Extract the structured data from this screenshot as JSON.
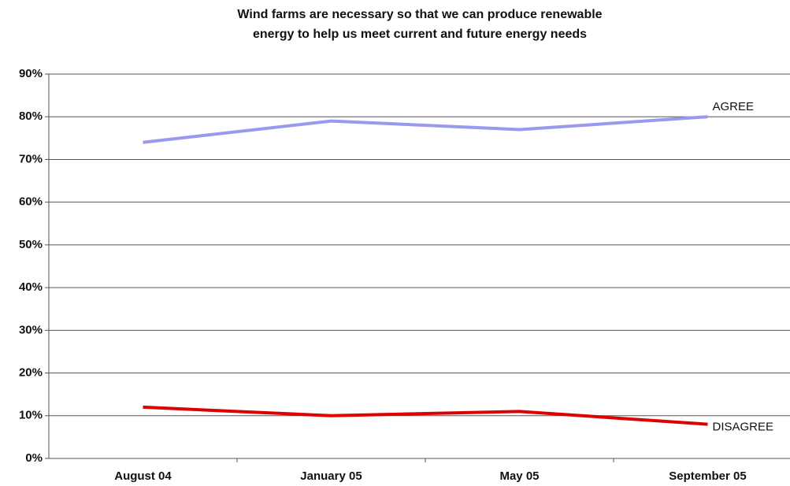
{
  "chart_data": {
    "type": "line",
    "title": [
      "Wind farms are necessary so that we can produce renewable",
      "energy to help us meet current and future energy needs"
    ],
    "categories": [
      "August 04",
      "January 05",
      "May 05",
      "September 05"
    ],
    "series": [
      {
        "name": "AGREE",
        "color": "#9999ee",
        "values": [
          74,
          79,
          77,
          80
        ]
      },
      {
        "name": "DISAGREE",
        "color": "#dd0000",
        "values": [
          12,
          10,
          11,
          8
        ]
      }
    ],
    "ylim": [
      0,
      90
    ],
    "yticks": [
      {
        "value": 0,
        "label": "0%"
      },
      {
        "value": 10,
        "label": "10%"
      },
      {
        "value": 20,
        "label": "20%"
      },
      {
        "value": 30,
        "label": "30%"
      },
      {
        "value": 40,
        "label": "40%"
      },
      {
        "value": 50,
        "label": "50%"
      },
      {
        "value": 60,
        "label": "60%"
      },
      {
        "value": 70,
        "label": "70%"
      },
      {
        "value": 80,
        "label": "80%"
      },
      {
        "value": 90,
        "label": "90%"
      }
    ],
    "grid": true
  }
}
